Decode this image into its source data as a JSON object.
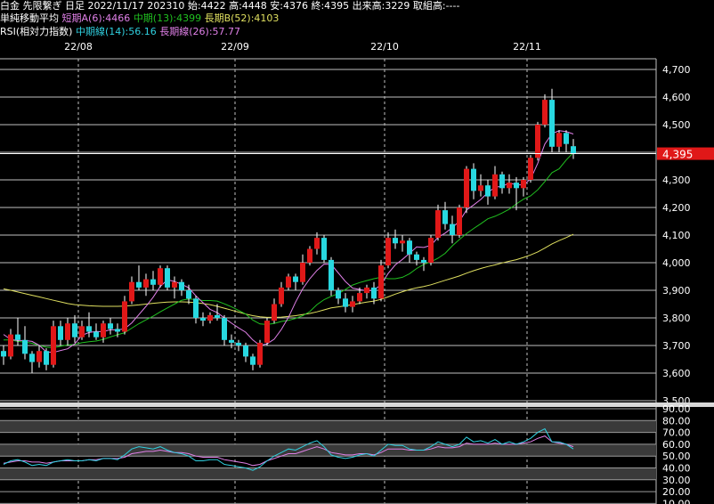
{
  "header": {
    "line1": "白金 先限繋ぎ 日足 2022/11/17 202310 始:4422 高:4448 安:4376 終:4395 出来高:3229 取組高:----",
    "ma_label": "単純移動平均",
    "ma_short": "短期A(6):4466",
    "ma_mid": "中期(13):4399",
    "ma_long": "長期B(52):4103",
    "rsi_label": "RSI(相対力指数)",
    "rsi_mid": "中期線(14):56.16",
    "rsi_long": "長期線(26):57.77"
  },
  "colors": {
    "background": "#000000",
    "up": "#e01818",
    "down": "#28d8e0",
    "ma_short": "#e080e8",
    "ma_mid": "#20c020",
    "ma_long": "#e0e060",
    "rsi_mid": "#30d0e0",
    "rsi_long": "#e080e8",
    "price_badge": "#e01818"
  },
  "chart_data": [
    {
      "type": "candlestick",
      "x_tick_labels": [
        "22/08",
        "22/09",
        "22/10",
        "22/11"
      ],
      "y_tick_labels": [
        "3,500",
        "3,600",
        "3,700",
        "3,800",
        "3,900",
        "4,000",
        "4,100",
        "4,200",
        "4,300",
        "4,400",
        "4,500",
        "4,600",
        "4,700"
      ],
      "ylim": [
        3500,
        4720
      ],
      "last_price_label": "4,395",
      "last_price": 4395,
      "grid": true,
      "month_start_index": [
        11,
        33,
        54,
        74
      ],
      "candles": [
        [
          3680,
          3700,
          3630,
          3660
        ],
        [
          3660,
          3760,
          3650,
          3740
        ],
        [
          3740,
          3800,
          3700,
          3720
        ],
        [
          3720,
          3770,
          3650,
          3670
        ],
        [
          3670,
          3680,
          3600,
          3640
        ],
        [
          3640,
          3700,
          3620,
          3680
        ],
        [
          3680,
          3690,
          3610,
          3630
        ],
        [
          3630,
          3790,
          3620,
          3770
        ],
        [
          3770,
          3790,
          3700,
          3720
        ],
        [
          3720,
          3800,
          3700,
          3780
        ],
        [
          3780,
          3810,
          3710,
          3730
        ],
        [
          3730,
          3790,
          3720,
          3770
        ],
        [
          3770,
          3820,
          3730,
          3750
        ],
        [
          3750,
          3780,
          3720,
          3730
        ],
        [
          3730,
          3790,
          3710,
          3780
        ],
        [
          3780,
          3800,
          3740,
          3760
        ],
        [
          3760,
          3780,
          3730,
          3750
        ],
        [
          3750,
          3880,
          3740,
          3860
        ],
        [
          3860,
          3950,
          3850,
          3930
        ],
        [
          3930,
          3990,
          3900,
          3910
        ],
        [
          3910,
          3960,
          3880,
          3940
        ],
        [
          3940,
          3970,
          3900,
          3920
        ],
        [
          3920,
          3990,
          3910,
          3980
        ],
        [
          3980,
          3990,
          3900,
          3910
        ],
        [
          3910,
          3950,
          3870,
          3930
        ],
        [
          3930,
          3940,
          3880,
          3900
        ],
        [
          3900,
          3920,
          3850,
          3870
        ],
        [
          3870,
          3880,
          3780,
          3800
        ],
        [
          3800,
          3820,
          3770,
          3790
        ],
        [
          3790,
          3820,
          3780,
          3810
        ],
        [
          3810,
          3850,
          3790,
          3800
        ],
        [
          3800,
          3810,
          3700,
          3720
        ],
        [
          3720,
          3740,
          3690,
          3710
        ],
        [
          3710,
          3720,
          3680,
          3700
        ],
        [
          3700,
          3710,
          3640,
          3660
        ],
        [
          3660,
          3670,
          3610,
          3630
        ],
        [
          3630,
          3720,
          3620,
          3710
        ],
        [
          3710,
          3800,
          3700,
          3790
        ],
        [
          3790,
          3870,
          3780,
          3850
        ],
        [
          3850,
          3930,
          3840,
          3910
        ],
        [
          3910,
          3960,
          3900,
          3950
        ],
        [
          3950,
          3960,
          3900,
          3930
        ],
        [
          3930,
          4030,
          3920,
          4000
        ],
        [
          4000,
          4060,
          3990,
          4050
        ],
        [
          4050,
          4110,
          4030,
          4090
        ],
        [
          4090,
          4100,
          4000,
          4010
        ],
        [
          4010,
          4020,
          3880,
          3900
        ],
        [
          3900,
          3910,
          3850,
          3870
        ],
        [
          3870,
          3890,
          3820,
          3840
        ],
        [
          3840,
          3880,
          3820,
          3860
        ],
        [
          3860,
          3910,
          3850,
          3890
        ],
        [
          3890,
          3920,
          3870,
          3910
        ],
        [
          3910,
          3930,
          3850,
          3870
        ],
        [
          3870,
          4010,
          3860,
          3990
        ],
        [
          3990,
          4110,
          3980,
          4090
        ],
        [
          4090,
          4120,
          4050,
          4070
        ],
        [
          4070,
          4100,
          4040,
          4080
        ],
        [
          4080,
          4090,
          4000,
          4030
        ],
        [
          4030,
          4040,
          3990,
          4010
        ],
        [
          4010,
          4020,
          3970,
          4000
        ],
        [
          4000,
          4100,
          3990,
          4090
        ],
        [
          4090,
          4210,
          4080,
          4190
        ],
        [
          4190,
          4220,
          4120,
          4140
        ],
        [
          4140,
          4170,
          4070,
          4100
        ],
        [
          4100,
          4210,
          4090,
          4200
        ],
        [
          4200,
          4350,
          4180,
          4340
        ],
        [
          4340,
          4360,
          4230,
          4260
        ],
        [
          4260,
          4320,
          4240,
          4280
        ],
        [
          4280,
          4300,
          4210,
          4240
        ],
        [
          4240,
          4350,
          4230,
          4320
        ],
        [
          4320,
          4330,
          4250,
          4270
        ],
        [
          4270,
          4320,
          4250,
          4290
        ],
        [
          4290,
          4310,
          4190,
          4270
        ],
        [
          4270,
          4310,
          4240,
          4300
        ],
        [
          4300,
          4390,
          4290,
          4380
        ],
        [
          4380,
          4510,
          4370,
          4500
        ],
        [
          4500,
          4610,
          4490,
          4590
        ],
        [
          4590,
          4630,
          4400,
          4420
        ],
        [
          4420,
          4480,
          4400,
          4470
        ],
        [
          4470,
          4480,
          4400,
          4430
        ],
        [
          4422,
          4448,
          4376,
          4395
        ]
      ],
      "ma_short": [
        3740,
        3722,
        3718,
        3718,
        3715,
        3701,
        3677,
        3675,
        3682,
        3688,
        3706,
        3737,
        3747,
        3751,
        3750,
        3757,
        3756,
        3761,
        3782,
        3812,
        3842,
        3875,
        3914,
        3938,
        3932,
        3922,
        3909,
        3880,
        3855,
        3831,
        3819,
        3800,
        3781,
        3764,
        3748,
        3720,
        3700,
        3706,
        3723,
        3758,
        3802,
        3857,
        3905,
        3942,
        3972,
        3995,
        3994,
        3963,
        3932,
        3908,
        3903,
        3898,
        3900,
        3921,
        3961,
        3992,
        4012,
        4034,
        4057,
        4055,
        4063,
        4092,
        4107,
        4127,
        4150,
        4191,
        4209,
        4229,
        4254,
        4274,
        4276,
        4289,
        4282,
        4282,
        4303,
        4360,
        4430,
        4467,
        4478,
        4475,
        4466
      ],
      "ma_mid": [
        3720,
        3720,
        3715,
        3712,
        3708,
        3700,
        3694,
        3692,
        3697,
        3702,
        3704,
        3710,
        3714,
        3716,
        3722,
        3731,
        3739,
        3746,
        3763,
        3779,
        3793,
        3806,
        3822,
        3836,
        3850,
        3864,
        3869,
        3866,
        3863,
        3863,
        3861,
        3851,
        3840,
        3827,
        3814,
        3792,
        3778,
        3776,
        3780,
        3787,
        3791,
        3798,
        3808,
        3823,
        3848,
        3866,
        3878,
        3888,
        3903,
        3919,
        3928,
        3935,
        3942,
        3947,
        3942,
        3942,
        3947,
        3960,
        3979,
        3994,
        4003,
        4016,
        4034,
        4061,
        4084,
        4105,
        4124,
        4141,
        4159,
        4168,
        4180,
        4194,
        4213,
        4230,
        4242,
        4264,
        4294,
        4326,
        4340,
        4372,
        4399
      ],
      "ma_long": [
        3905,
        3900,
        3894,
        3888,
        3882,
        3876,
        3870,
        3864,
        3858,
        3852,
        3848,
        3846,
        3844,
        3843,
        3842,
        3842,
        3842,
        3843,
        3845,
        3847,
        3850,
        3853,
        3855,
        3857,
        3858,
        3858,
        3857,
        3855,
        3852,
        3848,
        3842,
        3835,
        3828,
        3821,
        3814,
        3808,
        3804,
        3802,
        3802,
        3803,
        3805,
        3808,
        3812,
        3816,
        3822,
        3829,
        3836,
        3840,
        3844,
        3848,
        3853,
        3857,
        3861,
        3867,
        3876,
        3886,
        3895,
        3903,
        3909,
        3914,
        3920,
        3928,
        3936,
        3944,
        3952,
        3962,
        3971,
        3979,
        3986,
        3992,
        3999,
        4005,
        4011,
        4019,
        4028,
        4039,
        4053,
        4068,
        4080,
        4091,
        4103
      ]
    },
    {
      "type": "line",
      "name": "RSI",
      "y_tick_labels": [
        "10.00",
        "20.00",
        "30.00",
        "40.00",
        "50.00",
        "60.00",
        "70.00",
        "80.00",
        "90.00"
      ],
      "ylim": [
        10,
        90
      ],
      "rsi_mid": [
        43,
        46,
        47,
        45,
        42,
        43,
        42,
        45,
        46,
        47,
        46,
        46,
        47,
        46,
        48,
        48,
        47,
        51,
        56,
        58,
        57,
        56,
        58,
        55,
        53,
        52,
        50,
        46,
        46,
        47,
        47,
        43,
        42,
        41,
        40,
        38,
        41,
        46,
        50,
        53,
        56,
        55,
        58,
        61,
        63,
        58,
        51,
        49,
        48,
        49,
        51,
        52,
        50,
        55,
        60,
        59,
        59,
        56,
        55,
        55,
        58,
        62,
        60,
        58,
        60,
        66,
        62,
        63,
        61,
        64,
        60,
        62,
        60,
        62,
        65,
        70,
        73,
        62,
        62,
        60,
        56
      ],
      "rsi_long": [
        44,
        45,
        46,
        46,
        45,
        45,
        44,
        45,
        46,
        46,
        46,
        46,
        47,
        47,
        48,
        48,
        48,
        49,
        52,
        53,
        54,
        54,
        55,
        54,
        53,
        53,
        52,
        50,
        49,
        49,
        49,
        47,
        46,
        45,
        44,
        42,
        43,
        46,
        48,
        50,
        52,
        52,
        54,
        56,
        58,
        56,
        53,
        52,
        51,
        51,
        52,
        52,
        51,
        53,
        56,
        56,
        56,
        55,
        55,
        55,
        56,
        58,
        57,
        57,
        58,
        61,
        60,
        60,
        60,
        61,
        60,
        60,
        60,
        61,
        62,
        65,
        67,
        62,
        61,
        60,
        58
      ]
    }
  ]
}
